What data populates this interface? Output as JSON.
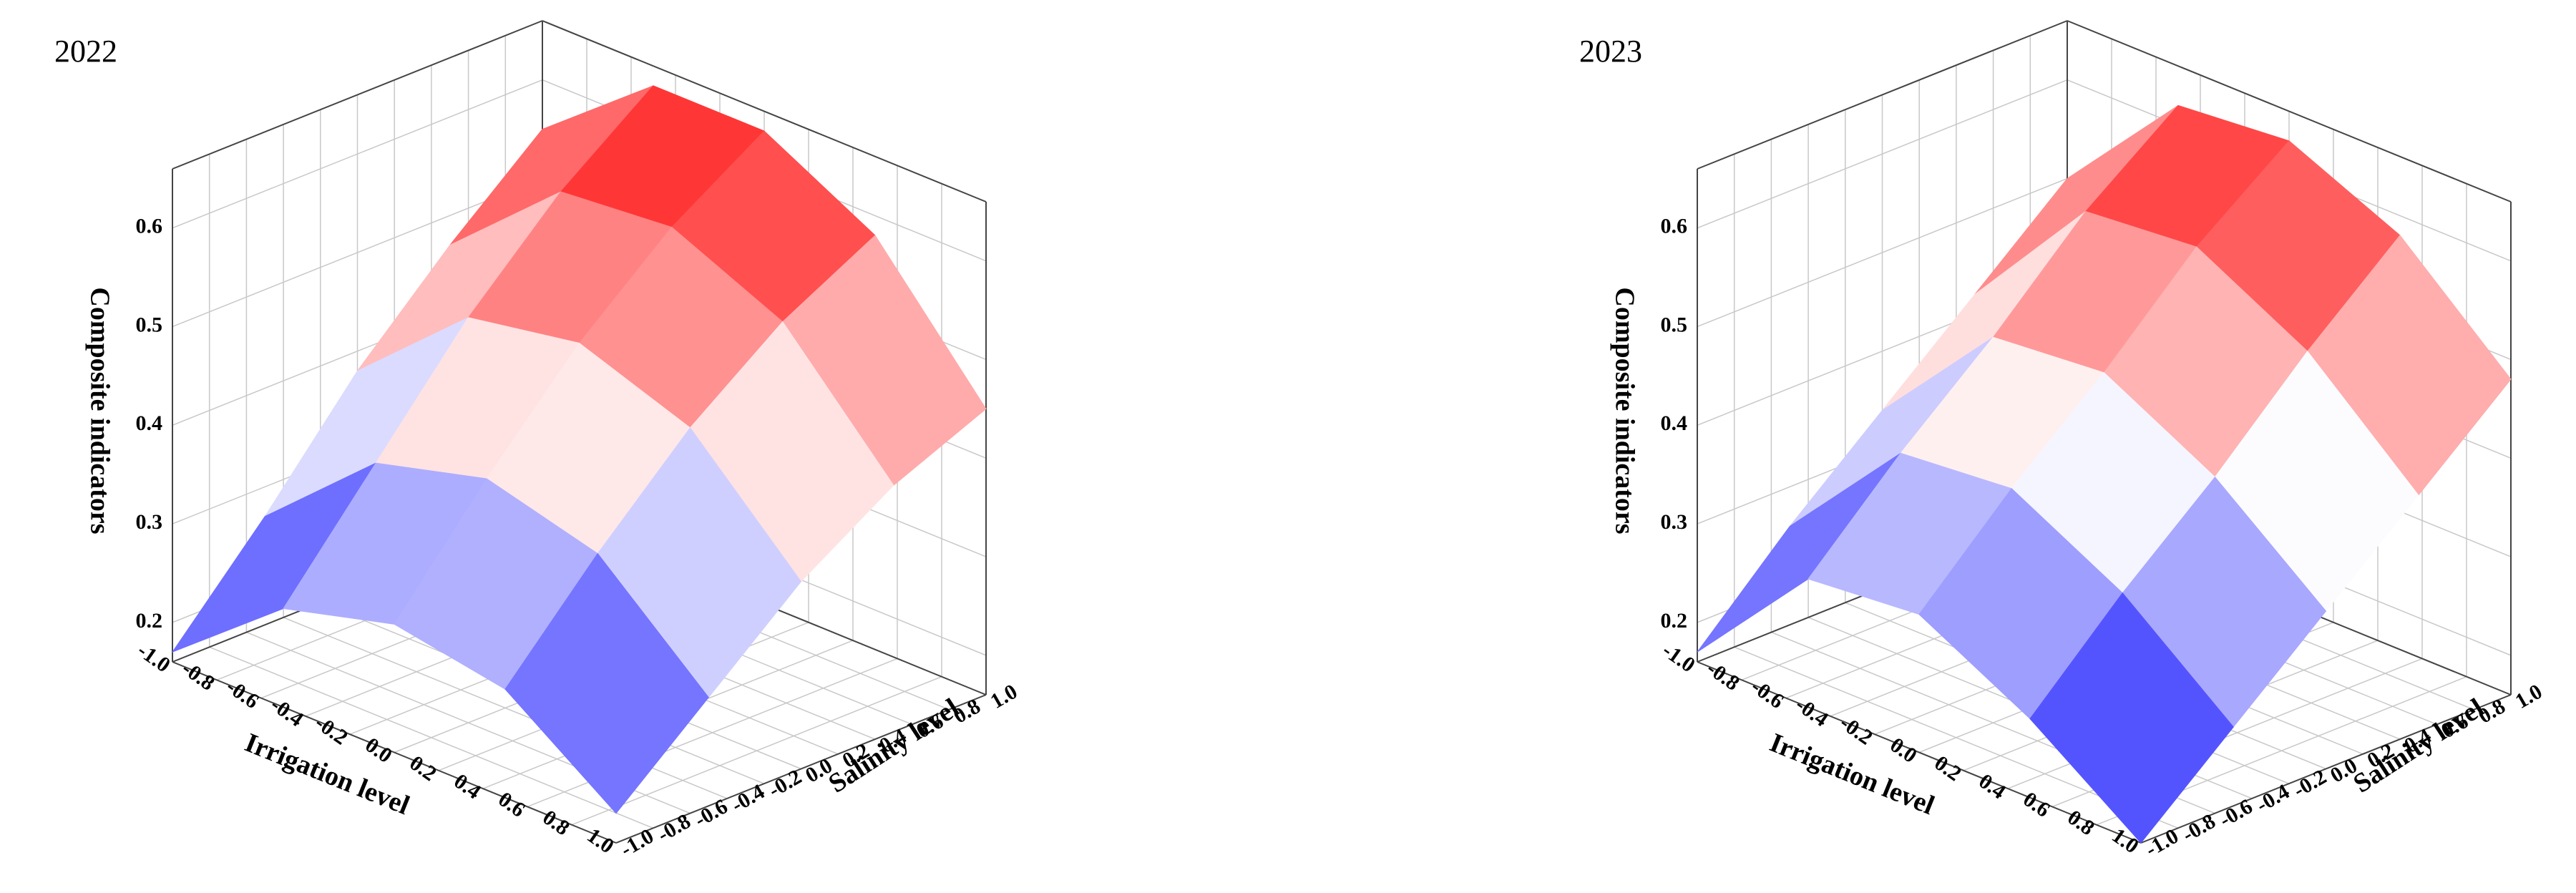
{
  "chart_data": [
    {
      "type": "surface3d",
      "title": "2022",
      "xlabel": "Irrigation level",
      "ylabel": "Salinity level",
      "zlabel": "Composite indicators",
      "x": [
        -1,
        -0.5,
        0,
        0.5,
        1
      ],
      "y": [
        -1,
        -0.5,
        0,
        0.5,
        1
      ],
      "z": [
        [
          0.17,
          0.26,
          0.29,
          0.27,
          0.19
        ],
        [
          0.27,
          0.37,
          0.4,
          0.37,
          0.27
        ],
        [
          0.38,
          0.48,
          0.5,
          0.46,
          0.35
        ],
        [
          0.47,
          0.57,
          0.58,
          0.53,
          0.41
        ],
        [
          0.55,
          0.64,
          0.64,
          0.58,
          0.45
        ]
      ],
      "xlim": [
        -1,
        1
      ],
      "ylim": [
        -1,
        1
      ],
      "zlim": [
        0.16,
        0.66
      ],
      "xticks": [
        {
          "value": -1,
          "label": "-1.0"
        },
        {
          "value": -0.8,
          "label": "-0.8"
        },
        {
          "value": -0.6,
          "label": "-0.6"
        },
        {
          "value": -0.4,
          "label": "-0.4"
        },
        {
          "value": -0.2,
          "label": "-0.2"
        },
        {
          "value": 0,
          "label": "0.0"
        },
        {
          "value": 0.2,
          "label": "0.2"
        },
        {
          "value": 0.4,
          "label": "0.4"
        },
        {
          "value": 0.6,
          "label": "0.6"
        },
        {
          "value": 0.8,
          "label": "0.8"
        },
        {
          "value": 1,
          "label": "1.0"
        }
      ],
      "yticks": [
        {
          "value": -1,
          "label": "-1.0"
        },
        {
          "value": -0.8,
          "label": "-0.8"
        },
        {
          "value": -0.6,
          "label": "-0.6"
        },
        {
          "value": -0.4,
          "label": "-0.4"
        },
        {
          "value": -0.2,
          "label": "-0.2"
        },
        {
          "value": 0,
          "label": "0.0"
        },
        {
          "value": 0.2,
          "label": "0.2"
        },
        {
          "value": 0.4,
          "label": "0.4"
        },
        {
          "value": 0.6,
          "label": "0.6"
        },
        {
          "value": 0.8,
          "label": "0.8"
        },
        {
          "value": 1,
          "label": "1.0"
        }
      ],
      "zticks": [
        0.2,
        0.3,
        0.4,
        0.5,
        0.6
      ],
      "colormap": [
        "#0000ff",
        "#ffffff",
        "#ff0000"
      ],
      "grid": true
    },
    {
      "type": "surface3d",
      "title": "2023",
      "xlabel": "Irrigation level",
      "ylabel": "Salinity level",
      "zlabel": "Composite indicators",
      "x": [
        -1,
        -0.5,
        0,
        0.5,
        1
      ],
      "y": [
        -1,
        -0.5,
        0,
        0.5,
        1
      ],
      "z": [
        [
          0.17,
          0.29,
          0.3,
          0.24,
          0.16
        ],
        [
          0.26,
          0.38,
          0.39,
          0.33,
          0.24
        ],
        [
          0.34,
          0.46,
          0.47,
          0.41,
          0.32
        ],
        [
          0.42,
          0.55,
          0.56,
          0.5,
          0.4
        ],
        [
          0.5,
          0.62,
          0.63,
          0.58,
          0.48
        ]
      ],
      "xlim": [
        -1,
        1
      ],
      "ylim": [
        -1,
        1
      ],
      "zlim": [
        0.16,
        0.66
      ],
      "xticks": [
        {
          "value": -1,
          "label": "-1.0"
        },
        {
          "value": -0.8,
          "label": "-0.8"
        },
        {
          "value": -0.6,
          "label": "-0.6"
        },
        {
          "value": -0.4,
          "label": "-0.4"
        },
        {
          "value": -0.2,
          "label": "-0.2"
        },
        {
          "value": 0,
          "label": "0.0"
        },
        {
          "value": 0.2,
          "label": "0.2"
        },
        {
          "value": 0.4,
          "label": "0.4"
        },
        {
          "value": 0.6,
          "label": "0.6"
        },
        {
          "value": 0.8,
          "label": "0.8"
        },
        {
          "value": 1,
          "label": "1.0"
        }
      ],
      "yticks": [
        {
          "value": -1,
          "label": "-1.0"
        },
        {
          "value": -0.8,
          "label": "-0.8"
        },
        {
          "value": -0.6,
          "label": "-0.6"
        },
        {
          "value": -0.4,
          "label": "-0.4"
        },
        {
          "value": -0.2,
          "label": "-0.2"
        },
        {
          "value": 0,
          "label": "0.0"
        },
        {
          "value": 0.2,
          "label": "0.2"
        },
        {
          "value": 0.4,
          "label": "0.4"
        },
        {
          "value": 0.6,
          "label": "0.6"
        },
        {
          "value": 0.8,
          "label": "0.8"
        },
        {
          "value": 1,
          "label": "1.0"
        }
      ],
      "zticks": [
        0.2,
        0.3,
        0.4,
        0.5,
        0.6
      ],
      "colormap": [
        "#0000ff",
        "#ffffff",
        "#ff0000"
      ],
      "grid": true
    }
  ]
}
